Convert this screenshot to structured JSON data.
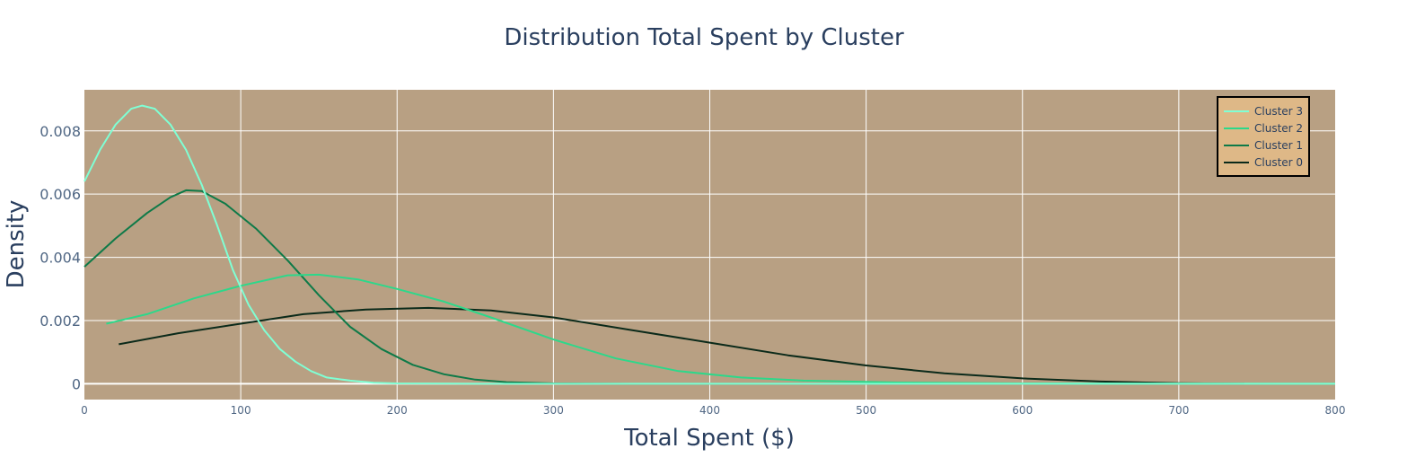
{
  "chart_data": {
    "type": "line",
    "title": "Distribution Total Spent by Cluster",
    "xlabel": "Total Spent ($)",
    "ylabel": "Density",
    "xlim": [
      0,
      800
    ],
    "ylim": [
      -0.0005,
      0.0093
    ],
    "x_ticks": [
      0,
      100,
      200,
      300,
      400,
      500,
      600,
      700,
      800
    ],
    "x_tick_labels": [
      "0",
      "100",
      "200",
      "300",
      "400",
      "500",
      "600",
      "700",
      "800"
    ],
    "y_ticks": [
      0,
      0.002,
      0.004,
      0.006,
      0.008
    ],
    "y_tick_labels": [
      "0",
      "0.002",
      "0.004",
      "0.006",
      "0.008"
    ],
    "grid": true,
    "legend_position": "top-right",
    "colors": {
      "plot_background": "#b8a083",
      "legend_background": "#deb887",
      "grid": "#ffffff",
      "title_text": "#2a3f5f",
      "tick_text": "#506784"
    },
    "series": [
      {
        "name": "Cluster 3",
        "color": "#7fffd4",
        "points": [
          [
            0,
            0.0064
          ],
          [
            10,
            0.0074
          ],
          [
            20,
            0.0082
          ],
          [
            30,
            0.0087
          ],
          [
            37,
            0.0088
          ],
          [
            45,
            0.0087
          ],
          [
            55,
            0.0082
          ],
          [
            65,
            0.0074
          ],
          [
            75,
            0.0063
          ],
          [
            85,
            0.005
          ],
          [
            95,
            0.0036
          ],
          [
            105,
            0.0025
          ],
          [
            115,
            0.0017
          ],
          [
            125,
            0.0011
          ],
          [
            135,
            0.0007
          ],
          [
            145,
            0.0004
          ],
          [
            155,
            0.0002
          ],
          [
            170,
            0.0001
          ],
          [
            185,
            3e-05
          ],
          [
            200,
            1e-05
          ],
          [
            250,
            0
          ],
          [
            400,
            0
          ],
          [
            600,
            0
          ],
          [
            800,
            0
          ]
        ]
      },
      {
        "name": "Cluster 2",
        "color": "#2dd88a",
        "points": [
          [
            14,
            0.0019
          ],
          [
            40,
            0.0022
          ],
          [
            70,
            0.0027
          ],
          [
            100,
            0.0031
          ],
          [
            130,
            0.00343
          ],
          [
            150,
            0.00345
          ],
          [
            175,
            0.0033
          ],
          [
            200,
            0.003
          ],
          [
            230,
            0.0026
          ],
          [
            260,
            0.0021
          ],
          [
            300,
            0.0014
          ],
          [
            340,
            0.0008
          ],
          [
            380,
            0.0004
          ],
          [
            420,
            0.0002
          ],
          [
            460,
            0.0001
          ],
          [
            520,
            4e-05
          ],
          [
            600,
            1e-05
          ],
          [
            800,
            0.0
          ]
        ]
      },
      {
        "name": "Cluster 1",
        "color": "#0e7a48",
        "points": [
          [
            0,
            0.0037
          ],
          [
            20,
            0.0046
          ],
          [
            40,
            0.0054
          ],
          [
            55,
            0.0059
          ],
          [
            65,
            0.00612
          ],
          [
            75,
            0.0061
          ],
          [
            90,
            0.0057
          ],
          [
            110,
            0.0049
          ],
          [
            130,
            0.0039
          ],
          [
            150,
            0.0028
          ],
          [
            170,
            0.0018
          ],
          [
            190,
            0.0011
          ],
          [
            210,
            0.0006
          ],
          [
            230,
            0.0003
          ],
          [
            250,
            0.00013
          ],
          [
            270,
            5e-05
          ],
          [
            300,
            1e-05
          ],
          [
            350,
            0
          ],
          [
            800,
            0
          ]
        ]
      },
      {
        "name": "Cluster 0",
        "color": "#0b2a1a",
        "points": [
          [
            22,
            0.00125
          ],
          [
            60,
            0.0016
          ],
          [
            100,
            0.0019
          ],
          [
            140,
            0.0022
          ],
          [
            180,
            0.00235
          ],
          [
            220,
            0.0024
          ],
          [
            260,
            0.00232
          ],
          [
            300,
            0.0021
          ],
          [
            350,
            0.0017
          ],
          [
            400,
            0.0013
          ],
          [
            450,
            0.0009
          ],
          [
            500,
            0.00058
          ],
          [
            550,
            0.00033
          ],
          [
            600,
            0.00017
          ],
          [
            650,
            7e-05
          ],
          [
            700,
            2e-05
          ],
          [
            742,
            0.0
          ]
        ]
      }
    ]
  }
}
